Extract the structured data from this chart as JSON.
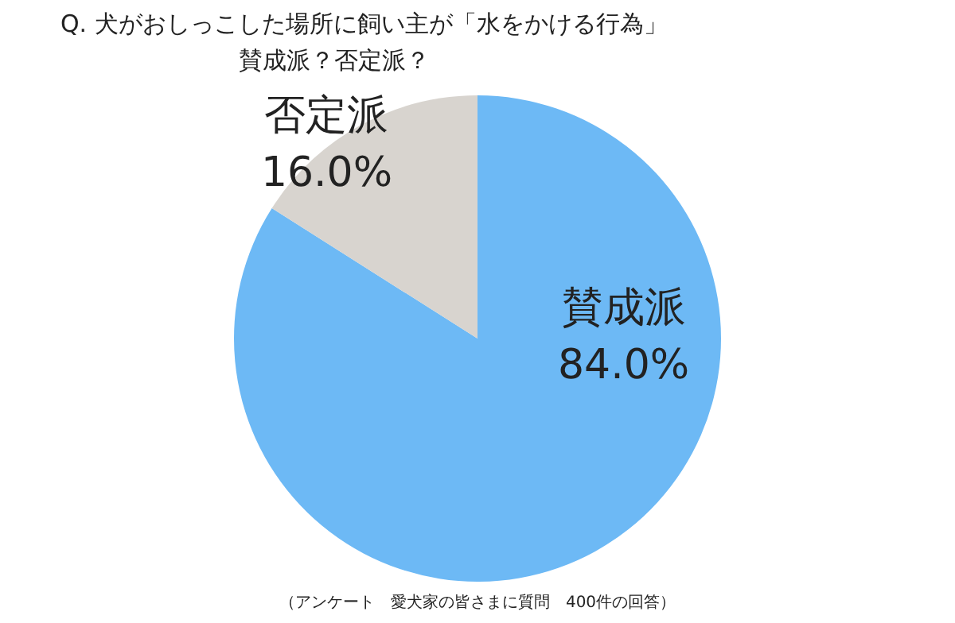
{
  "chart_data": {
    "type": "pie",
    "title": "Q.  犬がおしっこした場所に飼い主が「水をかける行為」",
    "subtitle": "賛成派？否定派？",
    "categories": [
      "賛成派",
      "否定派"
    ],
    "values": [
      84.0,
      16.0
    ],
    "colors": [
      "#6db9f5",
      "#d8d4cf"
    ],
    "value_labels": [
      "84.0%",
      "16.0%"
    ],
    "annotations": [
      "（アンケート　愛犬家の皆さまに質問　400件の回答）"
    ],
    "legend": false
  }
}
